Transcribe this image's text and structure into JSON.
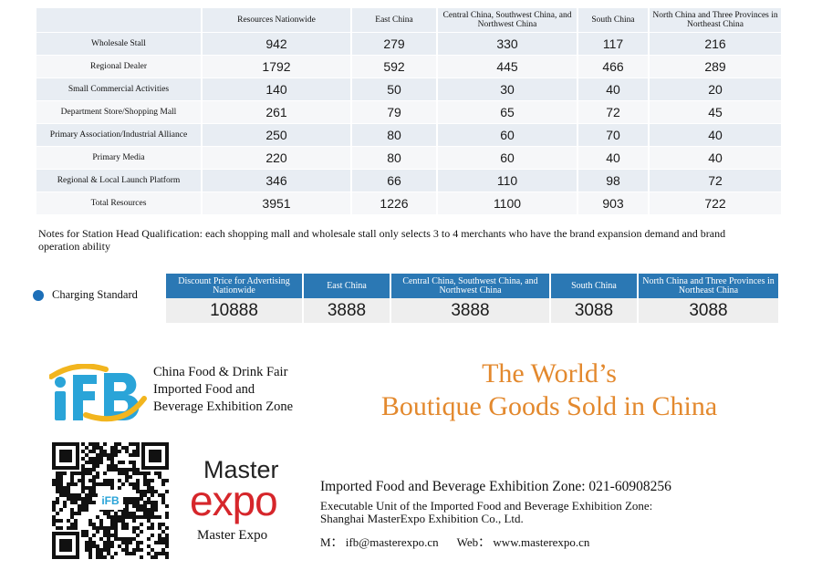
{
  "resources_table": {
    "columns": [
      "",
      "Resources Nationwide",
      "East China",
      "Central China, Southwest China, and Northwest China",
      "South China",
      "North China and Three Provinces in Northeast China"
    ],
    "rows": [
      {
        "label": "Wholesale Stall",
        "values": [
          "942",
          "279",
          "330",
          "117",
          "216"
        ]
      },
      {
        "label": "Regional Dealer",
        "values": [
          "1792",
          "592",
          "445",
          "466",
          "289"
        ]
      },
      {
        "label": "Small Commercial Activities",
        "values": [
          "140",
          "50",
          "30",
          "40",
          "20"
        ]
      },
      {
        "label": "Department Store/Shopping Mall",
        "values": [
          "261",
          "79",
          "65",
          "72",
          "45"
        ]
      },
      {
        "label": "Primary Association/Industrial Alliance",
        "values": [
          "250",
          "80",
          "60",
          "70",
          "40"
        ]
      },
      {
        "label": "Primary Media",
        "values": [
          "220",
          "80",
          "60",
          "40",
          "40"
        ]
      },
      {
        "label": "Regional & Local Launch Platform",
        "values": [
          "346",
          "66",
          "110",
          "98",
          "72"
        ]
      },
      {
        "label": "Total Resources",
        "values": [
          "3951",
          "1226",
          "1100",
          "903",
          "722"
        ]
      }
    ]
  },
  "note": "Notes for Station Head Qualification: each shopping mall and wholesale stall only selects 3 to 4 merchants who have the brand expansion demand and brand operation ability",
  "charging": {
    "label": "Charging Standard",
    "columns": [
      "Discount Price for Advertising Nationwide",
      "East China",
      "Central China, Southwest China, and Northwest China",
      "South China",
      "North China and Three Provinces in Northeast China"
    ],
    "values": [
      "10888",
      "3888",
      "3888",
      "3088",
      "3088"
    ]
  },
  "ifb": {
    "logo_text": "iFB",
    "lines": [
      "China Food & Drink Fair",
      "Imported Food and",
      "Beverage Exhibition Zone"
    ]
  },
  "slogan": {
    "line1": "The World’s",
    "line2": "Boutique Goods Sold in China"
  },
  "qr": {
    "center_text": "iFB"
  },
  "master_expo": {
    "word1": "Master",
    "word2": "expo",
    "caption": "Master Expo"
  },
  "contact": {
    "phone_line": "Imported Food and Beverage Exhibition Zone: 021-60908256",
    "unit_line1": "Executable Unit of the Imported Food and Beverage Exhibition Zone:",
    "unit_line2": "Shanghai MasterExpo Exhibition Co., Ltd.",
    "mail": "M： ifb@masterexpo.cn",
    "web": "Web： www.masterexpo.cn"
  },
  "colors": {
    "accent_blue": "#2b78b4",
    "slogan_orange": "#e3892e",
    "expo_red": "#d6262b",
    "logo_cyan": "#2aa4d8",
    "logo_yellow": "#f2b51e"
  }
}
